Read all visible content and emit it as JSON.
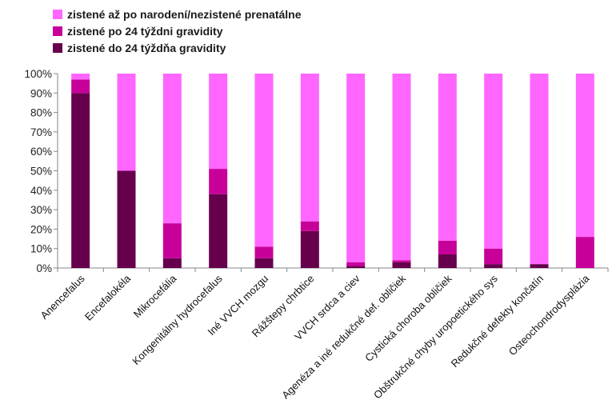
{
  "chart_data": {
    "type": "bar",
    "stacked": true,
    "percent": true,
    "categories": [
      "Anencefalus",
      "Encefalokéla",
      "Mikrocefália",
      "Kongenitálny hydrocefalus",
      "Iné VVCH mozgu",
      "Rážštepy chrbtice",
      "VVCH srdca a ciev",
      "Agenéza a iné redukčné def. obličiek",
      "Cystická choroba obličiek",
      "Obštrukčné chyby uropoetického sys",
      "Redukčné defekty končatín",
      "Osteochondrodysplázia"
    ],
    "series": [
      {
        "name": "zistené do 24 týždňa gravidity",
        "color": "#66004d",
        "values": [
          90,
          50,
          5,
          38,
          5,
          19,
          1,
          3,
          7,
          2,
          2,
          0
        ]
      },
      {
        "name": "zistené po 24 týždni gravidity",
        "color": "#c8009a",
        "values": [
          7,
          0,
          18,
          13,
          6,
          5,
          2,
          1,
          7,
          8,
          0,
          16
        ]
      },
      {
        "name": "zistené až po narodení/nezistené prenatálne",
        "color": "#ff66ff",
        "values": [
          3,
          50,
          77,
          49,
          89,
          76,
          97,
          96,
          86,
          90,
          98,
          84
        ]
      }
    ],
    "legend_order": [
      2,
      1,
      0
    ],
    "yticks": [
      "0%",
      "10%",
      "20%",
      "30%",
      "40%",
      "50%",
      "60%",
      "70%",
      "80%",
      "90%",
      "100%"
    ],
    "ylim": [
      0,
      100
    ],
    "grid": false,
    "legend_position": "top-left"
  }
}
